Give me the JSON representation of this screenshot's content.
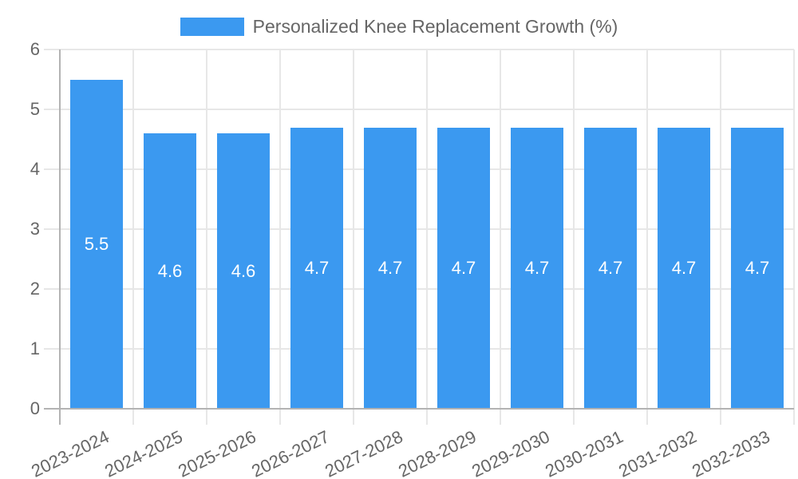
{
  "chart_data": {
    "type": "bar",
    "title": "Personalized Knee Replacement Growth (%)",
    "categories": [
      "2023-2024",
      "2024-2025",
      "2025-2026",
      "2026-2027",
      "2027-2028",
      "2028-2029",
      "2029-2030",
      "2030-2031",
      "2031-2032",
      "2032-2033"
    ],
    "values": [
      5.5,
      4.6,
      4.6,
      4.7,
      4.7,
      4.7,
      4.7,
      4.7,
      4.7,
      4.7
    ],
    "value_labels": [
      "5.5",
      "4.6",
      "4.6",
      "4.7",
      "4.7",
      "4.7",
      "4.7",
      "4.7",
      "4.7",
      "4.7"
    ],
    "y_ticks": [
      "0",
      "1",
      "2",
      "3",
      "4",
      "5",
      "6"
    ],
    "ylim": [
      0,
      6
    ],
    "xlabel": "",
    "ylabel": "",
    "grid": true,
    "legend_position": "top-center",
    "x_label_rotation_deg": -26,
    "colors": {
      "bar": "#3B99F0",
      "bar_value_text": "#ffffff",
      "axis_text": "#666666",
      "legend_text": "#666666",
      "gridline": "#e7e7e7",
      "zero_line": "#b3b3b3",
      "background": "#ffffff"
    }
  }
}
